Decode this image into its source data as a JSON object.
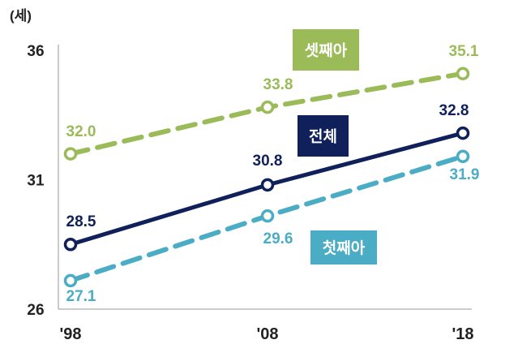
{
  "chart_data": {
    "type": "line",
    "title": "",
    "ylabel": "(세)",
    "xlabel": "",
    "x": [
      "'98",
      "'08",
      "'18"
    ],
    "ylim": [
      26,
      36
    ],
    "yticks": [
      "26",
      "31",
      "36"
    ],
    "grid": false,
    "series": [
      {
        "name": "셋째아",
        "values": [
          32.0,
          33.8,
          35.1
        ],
        "labels": [
          "32.0",
          "33.8",
          "35.1"
        ],
        "color": "#9bbb59",
        "dashed": true
      },
      {
        "name": "전체",
        "values": [
          28.5,
          30.8,
          32.8
        ],
        "labels": [
          "28.5",
          "30.8",
          "32.8"
        ],
        "color": "#10205a",
        "dashed": false
      },
      {
        "name": "첫째아",
        "values": [
          27.1,
          29.6,
          31.9
        ],
        "labels": [
          "27.1",
          "29.6",
          "31.9"
        ],
        "color": "#4bacc6",
        "dashed": true
      }
    ]
  }
}
